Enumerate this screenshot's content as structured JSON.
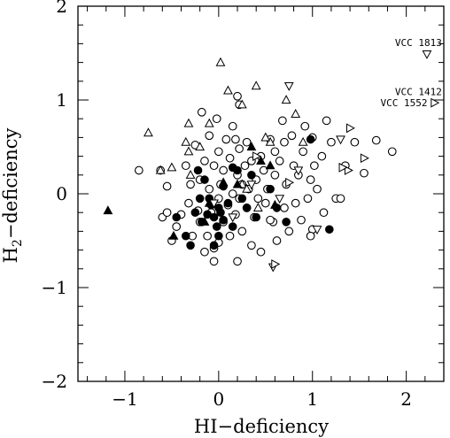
{
  "chart_data": {
    "type": "scatter",
    "xlabel": "HI−deficiency",
    "ylabel_main": "H",
    "ylabel_sub": "2",
    "ylabel_rest": "−deficiency",
    "xlim": [
      -1.5,
      2.4
    ],
    "ylim": [
      -2,
      2
    ],
    "x_ticks": [
      -1,
      0,
      1,
      2
    ],
    "x_tick_labels": [
      "−1",
      "0",
      "1",
      "2"
    ],
    "y_ticks": [
      -2,
      -1,
      0,
      1,
      2
    ],
    "y_tick_labels": [
      "−2",
      "−1",
      "0",
      "1",
      "2"
    ],
    "grid": false,
    "annotations": [
      {
        "text": "VCC 1813",
        "x": 2.22,
        "y": 1.49
      },
      {
        "text": "VCC 1412",
        "x": 2.2,
        "y": 1.09
      },
      {
        "text": "VCC 1552",
        "x": 2.32,
        "y": 0.97
      }
    ],
    "series": [
      {
        "marker": "open-circle",
        "points": [
          [
            -0.85,
            0.25
          ],
          [
            -0.62,
            0.25
          ],
          [
            -0.6,
            -0.25
          ],
          [
            -0.55,
            0.08
          ],
          [
            -0.5,
            -0.5
          ],
          [
            -0.45,
            -0.35
          ],
          [
            -0.4,
            -0.22
          ],
          [
            -0.35,
            0.3
          ],
          [
            -0.32,
            -0.1
          ],
          [
            -0.3,
            0.1
          ],
          [
            -0.28,
            -0.45
          ],
          [
            -0.25,
            0.52
          ],
          [
            -0.22,
            -0.18
          ],
          [
            -0.2,
            0.15
          ],
          [
            -0.2,
            -0.3
          ],
          [
            -0.18,
            0.87
          ],
          [
            -0.15,
            0.35
          ],
          [
            -0.15,
            -0.62
          ],
          [
            -0.12,
            -0.45
          ],
          [
            -0.1,
            0.05
          ],
          [
            -0.1,
            0.62
          ],
          [
            -0.08,
            -0.2
          ],
          [
            -0.05,
            0.3
          ],
          [
            -0.05,
            -0.72
          ],
          [
            -0.02,
            0.8
          ],
          [
            0,
            0.45
          ],
          [
            0,
            -0.05
          ],
          [
            0,
            -0.52
          ],
          [
            0.02,
            0.1
          ],
          [
            0.05,
            0.25
          ],
          [
            0.05,
            -0.3
          ],
          [
            0.08,
            0.58
          ],
          [
            0.1,
            -0.12
          ],
          [
            0.12,
            0.38
          ],
          [
            0.12,
            -0.45
          ],
          [
            0.15,
            0.0
          ],
          [
            0.15,
            0.72
          ],
          [
            0.18,
            -0.22
          ],
          [
            0.2,
            0.2
          ],
          [
            0.2,
            -0.72
          ],
          [
            0.22,
            0.48
          ],
          [
            0.22,
            -0.05
          ],
          [
            0.25,
            -0.4
          ],
          [
            0.25,
            0.1
          ],
          [
            0.28,
            0.3
          ],
          [
            0.3,
            -0.15
          ],
          [
            0.3,
            0.55
          ],
          [
            0.32,
            0.05
          ],
          [
            0.35,
            -0.55
          ],
          [
            0.35,
            0.35
          ],
          [
            0.38,
            -0.25
          ],
          [
            0.4,
            0.15
          ],
          [
            0.42,
            -0.05
          ],
          [
            0.45,
            0.4
          ],
          [
            0.45,
            -0.62
          ],
          [
            0.48,
            0.25
          ],
          [
            0.5,
            -0.1
          ],
          [
            0.52,
            0.05
          ],
          [
            0.55,
            0.58
          ],
          [
            0.58,
            -0.3
          ],
          [
            0.6,
            0.2
          ],
          [
            0.62,
            -0.5
          ],
          [
            0.65,
            0.35
          ],
          [
            0.68,
            0.78
          ],
          [
            0.7,
            -0.15
          ],
          [
            0.72,
            0.1
          ],
          [
            0.75,
            -0.4
          ],
          [
            0.78,
            0.62
          ],
          [
            0.8,
            0.3
          ],
          [
            0.82,
            -0.1
          ],
          [
            0.85,
            0.2
          ],
          [
            0.88,
            -0.28
          ],
          [
            0.9,
            0.45
          ],
          [
            0.92,
            0.72
          ],
          [
            0.95,
            -0.05
          ],
          [
            0.98,
            0.15
          ],
          [
            1.0,
            -0.38
          ],
          [
            1.0,
            0.6
          ],
          [
            1.02,
            0.3
          ],
          [
            1.05,
            0.05
          ],
          [
            1.1,
            0.4
          ],
          [
            1.12,
            -0.2
          ],
          [
            1.15,
            0.78
          ],
          [
            1.2,
            0.55
          ],
          [
            1.25,
            -0.05
          ],
          [
            1.3,
            -0.05
          ],
          [
            1.35,
            0.3
          ],
          [
            1.45,
            0.55
          ],
          [
            1.55,
            0.22
          ],
          [
            1.68,
            0.57
          ],
          [
            1.85,
            0.45
          ],
          [
            0.2,
            1.04
          ],
          [
            0.22,
            0.95
          ],
          [
            0.18,
            0.58
          ],
          [
            0.6,
            0.45
          ],
          [
            0.7,
            0.55
          ],
          [
            -0.55,
            -0.2
          ],
          [
            -0.05,
            -0.58
          ],
          [
            0.55,
            -0.28
          ],
          [
            0.98,
            -0.45
          ]
        ]
      },
      {
        "marker": "filled-circle",
        "points": [
          [
            -0.45,
            -0.25
          ],
          [
            -0.35,
            -0.45
          ],
          [
            -0.3,
            -0.55
          ],
          [
            -0.25,
            -0.2
          ],
          [
            -0.22,
            0.25
          ],
          [
            -0.2,
            -0.05
          ],
          [
            -0.18,
            -0.3
          ],
          [
            -0.15,
            0.15
          ],
          [
            -0.12,
            -0.22
          ],
          [
            -0.1,
            -0.05
          ],
          [
            -0.08,
            -0.12
          ],
          [
            -0.05,
            -0.25
          ],
          [
            -0.02,
            -0.35
          ],
          [
            0,
            -0.15
          ],
          [
            0.02,
            -0.2
          ],
          [
            0.05,
            0.08
          ],
          [
            0.05,
            -0.28
          ],
          [
            0.1,
            -0.1
          ],
          [
            0.15,
            -0.35
          ],
          [
            0.2,
            0.25
          ],
          [
            0.25,
            -0.05
          ],
          [
            0.3,
            -0.15
          ],
          [
            0.35,
            0.2
          ],
          [
            0.4,
            -0.25
          ],
          [
            0.55,
            0.05
          ],
          [
            0.62,
            -0.15
          ],
          [
            0.72,
            -0.3
          ],
          [
            0.98,
            0.58
          ],
          [
            1.18,
            -0.38
          ],
          [
            -0.05,
            -0.55
          ],
          [
            0.0,
            -0.45
          ],
          [
            0.15,
            0.28
          ]
        ]
      },
      {
        "marker": "open-triangle-up",
        "points": [
          [
            -0.75,
            0.65
          ],
          [
            -0.62,
            0.25
          ],
          [
            -0.5,
            0.28
          ],
          [
            -0.35,
            0.55
          ],
          [
            -0.32,
            0.45
          ],
          [
            -0.3,
            0.2
          ],
          [
            0.02,
            1.4
          ],
          [
            0.1,
            1.1
          ],
          [
            0.25,
            0.95
          ],
          [
            0.4,
            1.15
          ],
          [
            0.42,
            -0.15
          ],
          [
            0.55,
            0.55
          ],
          [
            0.72,
            1.0
          ],
          [
            0.82,
            0.85
          ],
          [
            0.9,
            0.55
          ],
          [
            -0.2,
            0.5
          ],
          [
            0.25,
            0.1
          ],
          [
            -0.1,
            0.75
          ],
          [
            0.5,
            0.6
          ],
          [
            0.3,
            0.05
          ],
          [
            -0.32,
            0.75
          ]
        ]
      },
      {
        "marker": "filled-triangle-up",
        "points": [
          [
            -1.18,
            -0.18
          ],
          [
            -0.48,
            -0.45
          ],
          [
            -0.1,
            -0.1
          ],
          [
            0.05,
            0.12
          ],
          [
            0.35,
            0.5
          ],
          [
            0.55,
            0.3
          ],
          [
            0.6,
            -0.12
          ],
          [
            0.45,
            0.35
          ],
          [
            -0.15,
            -0.3
          ],
          [
            0.2,
            0.1
          ]
        ]
      },
      {
        "marker": "open-triangle-down",
        "points": [
          [
            2.22,
            1.49
          ],
          [
            0.75,
            1.15
          ],
          [
            1.3,
            0.58
          ],
          [
            -0.05,
            -0.1
          ],
          [
            0.15,
            -0.25
          ],
          [
            0.35,
            0.1
          ],
          [
            0.85,
            0.25
          ],
          [
            0.58,
            -0.78
          ],
          [
            1.05,
            -0.38
          ],
          [
            0.65,
            -0.05
          ]
        ]
      },
      {
        "marker": "open-triangle-right",
        "points": [
          [
            2.3,
            0.97
          ],
          [
            1.55,
            0.38
          ],
          [
            1.38,
            0.25
          ],
          [
            1.32,
            0.28
          ],
          [
            1.4,
            0.7
          ],
          [
            0.6,
            -0.75
          ],
          [
            0.4,
            0.4
          ],
          [
            0.75,
            0.12
          ]
        ]
      }
    ]
  }
}
